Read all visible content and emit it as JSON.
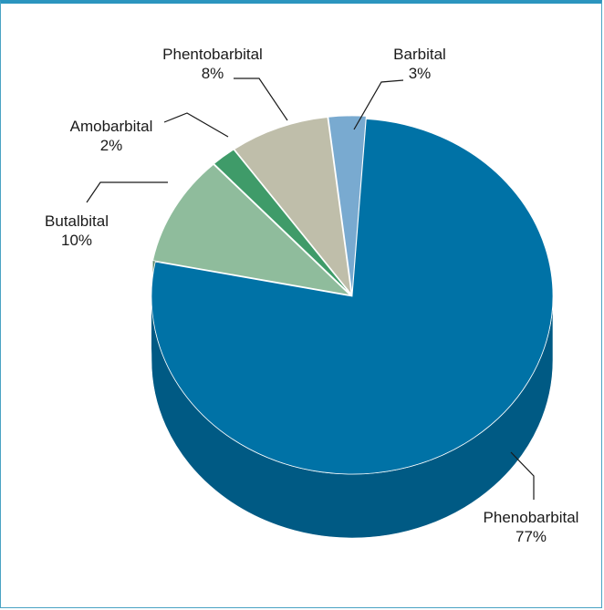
{
  "chart_data": {
    "type": "pie",
    "title": "",
    "slices": [
      {
        "name": "Phenobarbital",
        "value": 77,
        "percent_label": "77%",
        "color": "#0072a6",
        "side_color": "#005a84"
      },
      {
        "name": "Butalbital",
        "value": 10,
        "percent_label": "10%",
        "color": "#8fbc9c",
        "side_color": "#5f8a6b"
      },
      {
        "name": "Amobarbital",
        "value": 2,
        "percent_label": "2%",
        "color": "#3f9b69",
        "side_color": "#2e7a51"
      },
      {
        "name": "Phentobarbital",
        "value": 8,
        "percent_label": "8%",
        "color": "#bfbeaa",
        "side_color": "#9a9986"
      },
      {
        "name": "Barbital",
        "value": 3,
        "percent_label": "3%",
        "color": "#79aad0",
        "side_color": "#5b88ab"
      }
    ],
    "style": "3d-exploded-tilted",
    "legend": "none"
  }
}
